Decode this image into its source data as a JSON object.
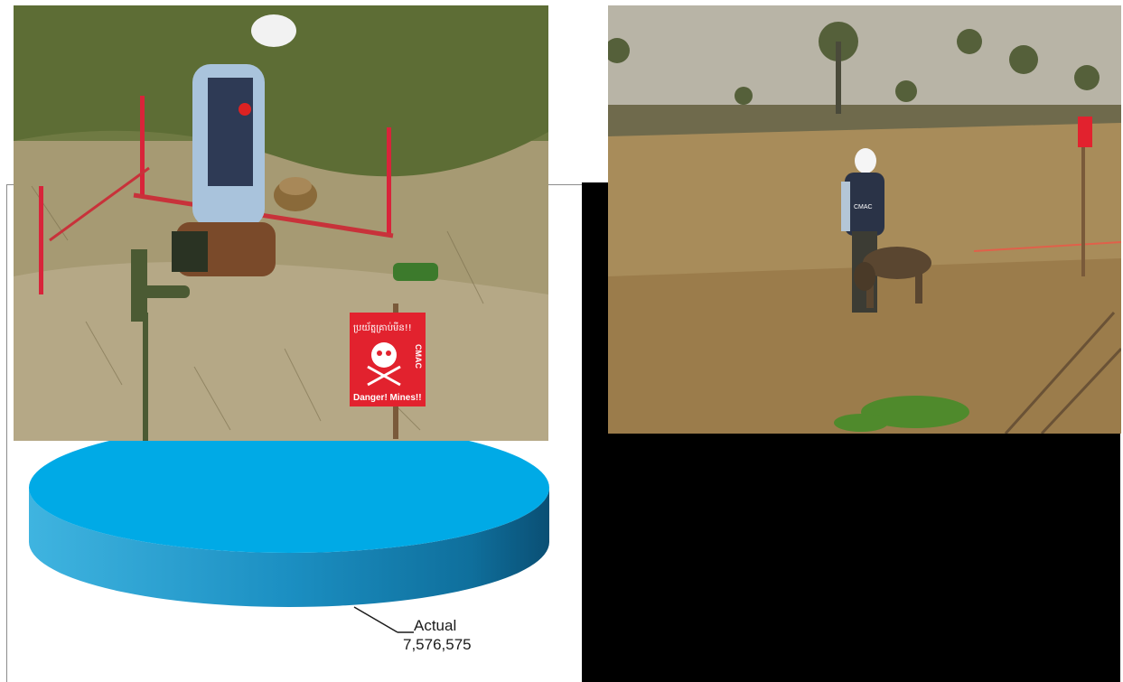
{
  "chart_data": {
    "type": "pie",
    "style": "3d",
    "slices": [
      {
        "label": "Actual",
        "value": 7576575,
        "value_text": "7,576,575",
        "color": "#00aae6"
      }
    ],
    "legend": "none"
  },
  "photos": {
    "left": {
      "sign_khmer": "ប្រយ័ត្នគ្រាប់មីន!!",
      "sign_org": "CMAC",
      "sign_text": "Danger! Mines!!"
    },
    "right": {
      "sign_org": "CMAC"
    }
  }
}
